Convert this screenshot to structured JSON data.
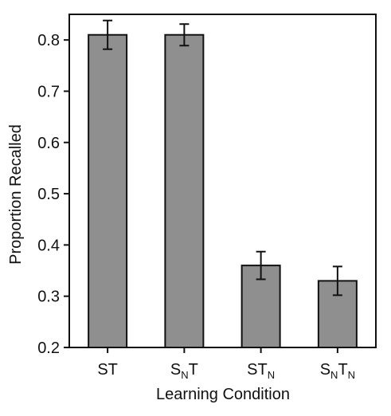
{
  "chart_data": {
    "type": "bar",
    "title": "",
    "xlabel": "Learning Condition",
    "ylabel": "Proportion Recalled",
    "ylim": [
      0.2,
      0.85
    ],
    "grid": false,
    "legend": "none",
    "categories": [
      {
        "label": "ST",
        "base": "ST",
        "sub": ""
      },
      {
        "label": "SNT",
        "base": "S",
        "sub": "N",
        "tail": "T"
      },
      {
        "label": "STN",
        "base": "ST",
        "sub": "N",
        "tail": ""
      },
      {
        "label": "SNTN",
        "base": "S",
        "sub": "N",
        "tail": "T",
        "sub2": "N"
      }
    ],
    "values": [
      0.81,
      0.81,
      0.36,
      0.33
    ],
    "errors": [
      0.028,
      0.021,
      0.027,
      0.028
    ],
    "yticks": [
      0.2,
      0.3,
      0.4,
      0.5,
      0.6,
      0.7,
      0.8
    ],
    "ytick_labels": [
      "0.2",
      "0.3",
      "0.4",
      "0.5",
      "0.6",
      "0.7",
      "0.8"
    ],
    "colors": {
      "bar_fill": "#8f8f8f",
      "bar_stroke": "#111111",
      "axis": "#111111",
      "error_bar": "#111111"
    }
  }
}
